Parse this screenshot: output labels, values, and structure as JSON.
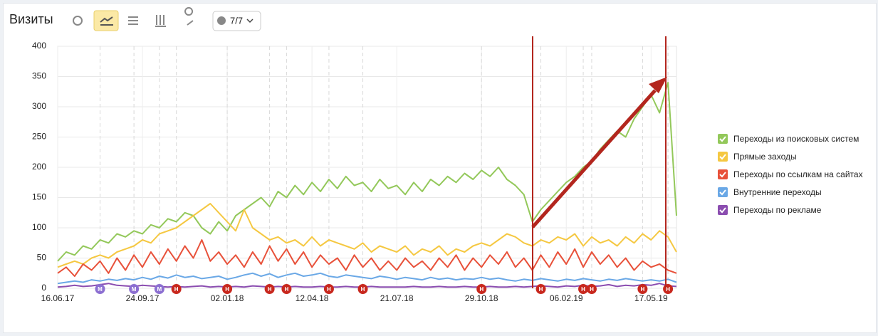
{
  "header": {
    "title": "Визиты",
    "filter_label": "7/7"
  },
  "chart_data": {
    "type": "line",
    "categories": [
      "16.06.17",
      null,
      null,
      null,
      null,
      null,
      null,
      null,
      null,
      null,
      "24.09.17",
      null,
      null,
      null,
      null,
      null,
      null,
      null,
      null,
      null,
      "02.01.18",
      null,
      null,
      null,
      null,
      null,
      null,
      null,
      null,
      null,
      "12.04.18",
      null,
      null,
      null,
      null,
      null,
      null,
      null,
      null,
      null,
      "21.07.18",
      null,
      null,
      null,
      null,
      null,
      null,
      null,
      null,
      null,
      "29.10.18",
      null,
      null,
      null,
      null,
      null,
      null,
      null,
      null,
      null,
      "06.02.19",
      null,
      null,
      null,
      null,
      null,
      null,
      null,
      null,
      null,
      "17.05.19",
      null,
      null,
      null
    ],
    "series": [
      {
        "name": "Переходы из поисковых систем",
        "color": "#93c85a",
        "values": [
          45,
          60,
          55,
          70,
          65,
          80,
          75,
          90,
          85,
          95,
          90,
          105,
          100,
          115,
          110,
          125,
          120,
          100,
          90,
          110,
          95,
          120,
          130,
          140,
          150,
          135,
          160,
          150,
          170,
          155,
          175,
          160,
          180,
          165,
          185,
          170,
          175,
          160,
          180,
          165,
          170,
          155,
          175,
          160,
          180,
          170,
          185,
          175,
          190,
          180,
          195,
          185,
          200,
          180,
          170,
          155,
          110,
          130,
          145,
          160,
          175,
          185,
          200,
          210,
          230,
          245,
          260,
          250,
          280,
          300,
          320,
          290,
          340,
          120
        ]
      },
      {
        "name": "Прямые заходы",
        "color": "#f5c842",
        "values": [
          35,
          40,
          45,
          40,
          50,
          55,
          50,
          60,
          65,
          70,
          80,
          75,
          90,
          95,
          100,
          110,
          120,
          130,
          140,
          125,
          110,
          95,
          130,
          100,
          90,
          80,
          85,
          75,
          80,
          70,
          85,
          70,
          80,
          75,
          70,
          65,
          75,
          60,
          70,
          65,
          60,
          70,
          55,
          65,
          60,
          70,
          55,
          65,
          60,
          70,
          75,
          70,
          80,
          90,
          85,
          75,
          70,
          80,
          75,
          85,
          80,
          90,
          70,
          85,
          75,
          80,
          70,
          85,
          75,
          90,
          80,
          95,
          85,
          60
        ]
      },
      {
        "name": "Переходы по ссылкам на сайтах",
        "color": "#e8513a",
        "values": [
          25,
          35,
          20,
          40,
          30,
          45,
          25,
          50,
          30,
          55,
          35,
          60,
          40,
          65,
          45,
          70,
          50,
          80,
          45,
          60,
          40,
          55,
          35,
          60,
          40,
          70,
          45,
          65,
          40,
          60,
          35,
          55,
          40,
          50,
          30,
          55,
          35,
          50,
          30,
          45,
          30,
          50,
          35,
          45,
          30,
          50,
          35,
          55,
          30,
          50,
          35,
          55,
          40,
          60,
          35,
          50,
          30,
          55,
          35,
          60,
          40,
          65,
          35,
          60,
          40,
          55,
          35,
          50,
          30,
          45,
          35,
          40,
          30,
          25
        ]
      },
      {
        "name": "Внутренние переходы",
        "color": "#6aa8e6",
        "values": [
          8,
          10,
          12,
          10,
          14,
          12,
          15,
          13,
          16,
          14,
          18,
          15,
          20,
          17,
          22,
          18,
          20,
          16,
          18,
          20,
          15,
          18,
          22,
          25,
          20,
          24,
          18,
          22,
          25,
          20,
          22,
          25,
          20,
          18,
          22,
          20,
          18,
          16,
          20,
          18,
          15,
          18,
          16,
          14,
          18,
          15,
          17,
          14,
          16,
          15,
          18,
          15,
          17,
          14,
          12,
          15,
          13,
          16,
          14,
          12,
          15,
          13,
          16,
          14,
          12,
          15,
          13,
          16,
          14,
          12,
          14,
          12,
          15,
          10
        ]
      },
      {
        "name": "Переходы по рекламе",
        "color": "#8b4db0",
        "values": [
          2,
          3,
          5,
          3,
          4,
          6,
          8,
          5,
          4,
          3,
          5,
          4,
          3,
          2,
          3,
          2,
          3,
          4,
          2,
          3,
          2,
          3,
          2,
          4,
          3,
          2,
          3,
          2,
          3,
          2,
          2,
          3,
          2,
          2,
          3,
          2,
          2,
          3,
          2,
          2,
          2,
          2,
          3,
          2,
          2,
          3,
          2,
          2,
          3,
          2,
          2,
          3,
          2,
          2,
          3,
          2,
          3,
          4,
          3,
          2,
          4,
          3,
          5,
          3,
          4,
          6,
          3,
          5,
          4,
          6,
          5,
          8,
          4,
          3
        ]
      }
    ],
    "ylim": [
      0,
      400
    ],
    "yticks": [
      0,
      50,
      100,
      150,
      200,
      250,
      300,
      350,
      400
    ],
    "grid": true,
    "legend": "right",
    "annotations": [
      {
        "x": 5,
        "label": "М",
        "color": "#8c6fd1"
      },
      {
        "x": 9,
        "label": "М",
        "color": "#8c6fd1"
      },
      {
        "x": 12,
        "label": "М",
        "color": "#8c6fd1"
      },
      {
        "x": 14,
        "label": "Н",
        "color": "#c8281e"
      },
      {
        "x": 20,
        "label": "Н",
        "color": "#c8281e"
      },
      {
        "x": 25,
        "label": "Н",
        "color": "#c8281e"
      },
      {
        "x": 27,
        "label": "Н",
        "color": "#c8281e"
      },
      {
        "x": 32,
        "label": "Н",
        "color": "#c8281e"
      },
      {
        "x": 36,
        "label": "Н",
        "color": "#c8281e"
      },
      {
        "x": 50,
        "label": "Н",
        "color": "#c8281e"
      },
      {
        "x": 57,
        "label": "Н",
        "color": "#c8281e"
      },
      {
        "x": 62,
        "label": "Н",
        "color": "#c8281e"
      },
      {
        "x": 63,
        "label": "Н",
        "color": "#c8281e"
      },
      {
        "x": 69,
        "label": "Н",
        "color": "#c8281e"
      },
      {
        "x": 72,
        "label": "Н",
        "color": "#c8281e"
      }
    ]
  }
}
